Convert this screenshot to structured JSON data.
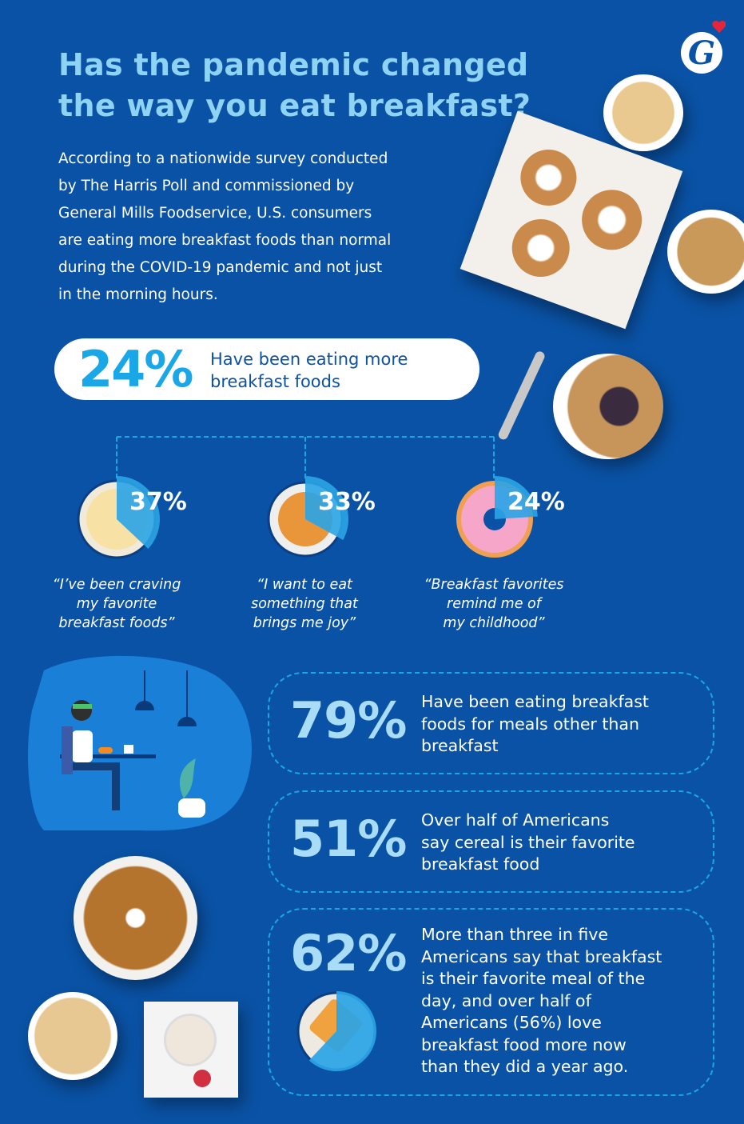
{
  "colors": {
    "background": "#0a52a5",
    "title": "#8fd3f4",
    "accent": "#1aa7e8",
    "stat": "#a8dcf7",
    "logo_heart": "#e5253a"
  },
  "logo": {
    "text": "G",
    "icon": "general-mills-logo"
  },
  "header": {
    "title_line1": "Has the pandemic changed",
    "title_line2": "the way you eat breakfast?"
  },
  "intro": {
    "lines": [
      "According to a nationwide survey conducted",
      "by The Harris Poll and commissioned by",
      "General Mills Foodservice, U.S. consumers",
      "are eating more breakfast foods than normal",
      "during the COVID-19 pandemic and not just",
      "in the morning hours."
    ]
  },
  "headline_stat": {
    "value": "24%",
    "text_line1": "Have been eating more",
    "text_line2": "breakfast foods"
  },
  "reasons": [
    {
      "value": "37%",
      "percent": 37,
      "icon": "cereal-bowl-icon",
      "quote": [
        "“I’ve been craving",
        "my favorite",
        "breakfast foods”"
      ]
    },
    {
      "value": "33%",
      "percent": 33,
      "icon": "pancake-plate-icon",
      "quote": [
        "“I want to eat",
        "something that",
        "brings me joy”"
      ]
    },
    {
      "value": "24%",
      "percent": 24,
      "icon": "donut-icon",
      "quote": [
        "“Breakfast favorites",
        "remind me of",
        "my childhood”"
      ]
    }
  ],
  "stats": [
    {
      "value": "79%",
      "lines": [
        "Have been eating breakfast",
        "foods for meals other than",
        "breakfast"
      ]
    },
    {
      "value": "51%",
      "lines": [
        "Over half of Americans",
        "say cereal is their favorite",
        "breakfast food"
      ]
    },
    {
      "value": "62%",
      "percent": 62,
      "icon": "waffle-plate-icon",
      "lines": [
        "More than three in five",
        "Americans say that breakfast",
        "is their favorite meal of the",
        "day, and over half of",
        "Americans (56%) love",
        "breakfast food more now",
        "than they did a year ago."
      ]
    }
  ]
}
